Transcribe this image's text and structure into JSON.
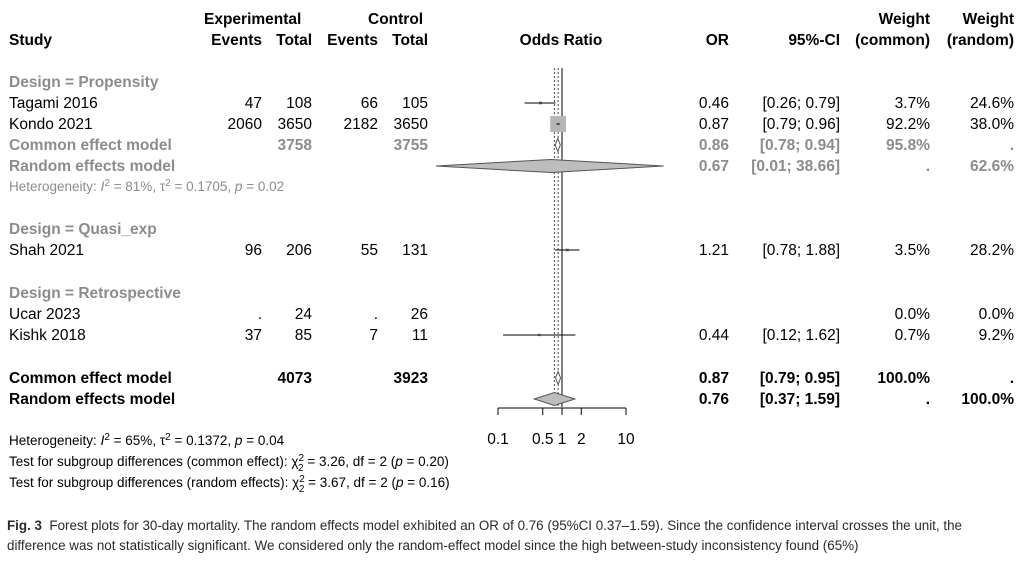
{
  "headers": {
    "study": "Study",
    "group_exp": "Experimental",
    "group_ctrl": "Control",
    "events": "Events",
    "total": "Total",
    "plot": "Odds Ratio",
    "or": "OR",
    "ci": "95%-CI",
    "weight": "Weight",
    "weight_common": "(common)",
    "weight_random": "(random)"
  },
  "subgroups": [
    {
      "title": "Design = Propensity",
      "studies": [
        {
          "study": "Tagami 2016",
          "e_events": "47",
          "e_total": "108",
          "c_events": "66",
          "c_total": "105",
          "or": "0.46",
          "ci": "[0.26; 0.79]",
          "w_common": "3.7%",
          "w_random": "24.6%"
        },
        {
          "study": "Kondo 2021",
          "e_events": "2060",
          "e_total": "3650",
          "c_events": "2182",
          "c_total": "3650",
          "or": "0.87",
          "ci": "[0.79; 0.96]",
          "w_common": "92.2%",
          "w_random": "38.0%"
        }
      ],
      "common": {
        "label": "Common effect model",
        "e_total": "3758",
        "c_total": "3755",
        "or": "0.86",
        "ci": "[0.78; 0.94]",
        "w_common": "95.8%",
        "w_random": "."
      },
      "random": {
        "label": "Random effects model",
        "or": "0.67",
        "ci": "[0.01; 38.66]",
        "w_common": ".",
        "w_random": "62.6%"
      },
      "heterogeneity": {
        "prefix": "Heterogeneity: ",
        "i2": "81%",
        "tau2": "0.1705",
        "p": "0.02"
      }
    },
    {
      "title": "Design = Quasi_exp",
      "studies": [
        {
          "study": "Shah 2021",
          "e_events": "96",
          "e_total": "206",
          "c_events": "55",
          "c_total": "131",
          "or": "1.21",
          "ci": "[0.78; 1.88]",
          "w_common": "3.5%",
          "w_random": "28.2%"
        }
      ]
    },
    {
      "title": "Design = Retrospective",
      "studies": [
        {
          "study": "Ucar 2023",
          "e_events": ".",
          "e_total": "24",
          "c_events": ".",
          "c_total": "26",
          "or": "",
          "ci": "",
          "w_common": "0.0%",
          "w_random": "0.0%"
        },
        {
          "study": "Kishk 2018",
          "e_events": "37",
          "e_total": "85",
          "c_events": "7",
          "c_total": "11",
          "or": "0.44",
          "ci": "[0.12; 1.62]",
          "w_common": "0.7%",
          "w_random": "9.2%"
        }
      ]
    }
  ],
  "overall": {
    "common": {
      "label": "Common effect model",
      "e_total": "4073",
      "c_total": "3923",
      "or": "0.87",
      "ci": "[0.79; 0.95]",
      "w_common": "100.0%",
      "w_random": "."
    },
    "random": {
      "label": "Random effects model",
      "or": "0.76",
      "ci": "[0.37; 1.59]",
      "w_common": ".",
      "w_random": "100.0%"
    }
  },
  "footer": {
    "heterogeneity": {
      "prefix": "Heterogeneity: ",
      "i2": "65%",
      "tau2": "0.1372",
      "p": "0.04"
    },
    "test_common": {
      "prefix": "Test for subgroup differences (common effect): ",
      "chi2": "3.26",
      "df": "2",
      "p": "0.20"
    },
    "test_random": {
      "prefix": "Test for subgroup differences (random effects): ",
      "chi2": "3.67",
      "df": "2",
      "p": "0.16"
    }
  },
  "caption": {
    "figure_label": "Fig. 3",
    "text": "Forest plots for 30-day mortality. The random effects model exhibited an OR of 0.76 (95%CI 0.37–1.59). Since the confidence interval crosses the unit, the difference was not statistically significant. We considered only the random-effect model since the high between-study inconsistency found (65%)"
  },
  "chart_data": {
    "type": "forest",
    "scale": "log",
    "xlim": [
      0.1,
      10
    ],
    "ticks": [
      "0.1",
      "0.5",
      "1",
      "2",
      "10"
    ],
    "tick_values": [
      0.1,
      0.5,
      1,
      2,
      10
    ],
    "null_line": 1,
    "overall_common_line": 0.87,
    "overall_random_line": 0.76,
    "rows": [
      {
        "name": "Tagami 2016",
        "or": 0.46,
        "lo": 0.26,
        "hi": 0.79,
        "weight_common": 3.7
      },
      {
        "name": "Kondo 2021",
        "or": 0.87,
        "lo": 0.79,
        "hi": 0.96,
        "weight_common": 92.2
      },
      {
        "name": "Propensity common",
        "kind": "diamond",
        "or": 0.86,
        "lo": 0.78,
        "hi": 0.94
      },
      {
        "name": "Propensity random",
        "kind": "diamond",
        "or": 0.67,
        "lo": 0.01,
        "hi": 38.66
      },
      {
        "name": "Shah 2021",
        "or": 1.21,
        "lo": 0.78,
        "hi": 1.88,
        "weight_common": 3.5
      },
      {
        "name": "Kishk 2018",
        "or": 0.44,
        "lo": 0.12,
        "hi": 1.62,
        "weight_common": 0.7
      },
      {
        "name": "Overall common",
        "kind": "diamond",
        "or": 0.87,
        "lo": 0.79,
        "hi": 0.95
      },
      {
        "name": "Overall random",
        "kind": "diamond",
        "or": 0.76,
        "lo": 0.37,
        "hi": 1.59
      }
    ]
  }
}
